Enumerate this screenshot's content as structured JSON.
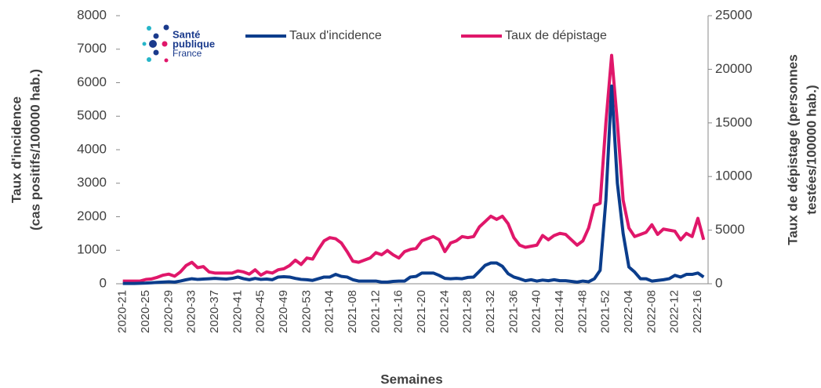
{
  "chart_data": {
    "type": "line",
    "logo": [
      "Santé",
      "publique",
      "France"
    ],
    "xlabel": "Semaines",
    "ylabel": [
      "Taux d'incidence",
      "(cas  positifs/100000 hab.)"
    ],
    "y2label": [
      "Taux de dépistage (personnes",
      "testées/100000 hab.)"
    ],
    "categories": [
      "2020-21",
      null,
      null,
      null,
      "2020-25",
      null,
      null,
      null,
      "2020-29",
      null,
      null,
      null,
      "2020-33",
      null,
      null,
      null,
      "2020-37",
      null,
      null,
      null,
      "2020-41",
      null,
      null,
      null,
      "2020-45",
      null,
      null,
      null,
      "2020-49",
      null,
      null,
      null,
      "2020-53",
      null,
      null,
      null,
      "2021-04",
      null,
      null,
      null,
      "2021-08",
      null,
      null,
      null,
      "2021-12",
      null,
      null,
      null,
      "2021-16",
      null,
      null,
      null,
      "2021-20",
      null,
      null,
      null,
      "2021-24",
      null,
      null,
      null,
      "2021-28",
      null,
      null,
      null,
      "2021-32",
      null,
      null,
      null,
      "2021-36",
      null,
      null,
      null,
      "2021-40",
      null,
      null,
      null,
      "2021-44",
      null,
      null,
      null,
      "2021-48",
      null,
      null,
      null,
      "2021-52",
      null,
      null,
      null,
      "2022-04",
      null,
      null,
      null,
      "2022-08",
      null,
      null,
      null,
      "2022-12",
      null,
      null,
      null,
      "2022-16",
      null
    ],
    "series": [
      {
        "name": "Taux d'incidence",
        "color": "#0b3d8c",
        "axis": "y",
        "values": [
          10,
          10,
          10,
          15,
          20,
          30,
          40,
          50,
          60,
          50,
          80,
          120,
          150,
          130,
          140,
          150,
          160,
          150,
          140,
          160,
          200,
          150,
          120,
          160,
          130,
          140,
          120,
          200,
          210,
          200,
          160,
          130,
          120,
          100,
          150,
          200,
          200,
          280,
          220,
          200,
          120,
          80,
          80,
          80,
          80,
          50,
          50,
          70,
          80,
          80,
          200,
          220,
          320,
          320,
          320,
          250,
          160,
          150,
          160,
          150,
          190,
          200,
          370,
          550,
          620,
          620,
          520,
          300,
          200,
          150,
          90,
          120,
          80,
          110,
          90,
          120,
          90,
          90,
          70,
          50,
          80,
          60,
          150,
          400,
          2500,
          5900,
          3000,
          1500,
          500,
          350,
          150,
          150,
          80,
          100,
          120,
          150,
          250,
          200,
          280,
          280,
          320,
          200
        ]
      },
      {
        "name": "Taux de dépistage",
        "color": "#e0176a",
        "axis": "y2",
        "values": [
          250,
          250,
          250,
          250,
          400,
          450,
          600,
          800,
          900,
          700,
          1100,
          1700,
          2000,
          1500,
          1600,
          1100,
          1000,
          1000,
          1000,
          1000,
          1200,
          1100,
          900,
          1300,
          800,
          1100,
          1000,
          1300,
          1400,
          1700,
          2200,
          1800,
          2400,
          2300,
          3200,
          4000,
          4300,
          4200,
          3800,
          3000,
          2100,
          2000,
          2200,
          2400,
          2900,
          2700,
          3100,
          2700,
          2400,
          3000,
          3200,
          3300,
          4000,
          4200,
          4400,
          4100,
          3000,
          3800,
          4000,
          4400,
          4300,
          4400,
          5300,
          5800,
          6300,
          6000,
          6300,
          5600,
          4300,
          3600,
          3400,
          3500,
          3600,
          4500,
          4100,
          4500,
          4700,
          4600,
          4100,
          3600,
          4000,
          5200,
          7300,
          7500,
          15000,
          21300,
          15000,
          7800,
          5200,
          4400,
          4600,
          4800,
          5500,
          4600,
          5100,
          5000,
          4900,
          4100,
          4700,
          4400,
          6100,
          4100
        ]
      }
    ],
    "ylim": [
      0,
      8000
    ],
    "yticks": [
      0,
      1000,
      2000,
      3000,
      4000,
      5000,
      6000,
      7000,
      8000
    ],
    "y2lim": [
      0,
      25000
    ],
    "y2ticks": [
      0,
      5000,
      10000,
      15000,
      20000,
      25000
    ]
  }
}
